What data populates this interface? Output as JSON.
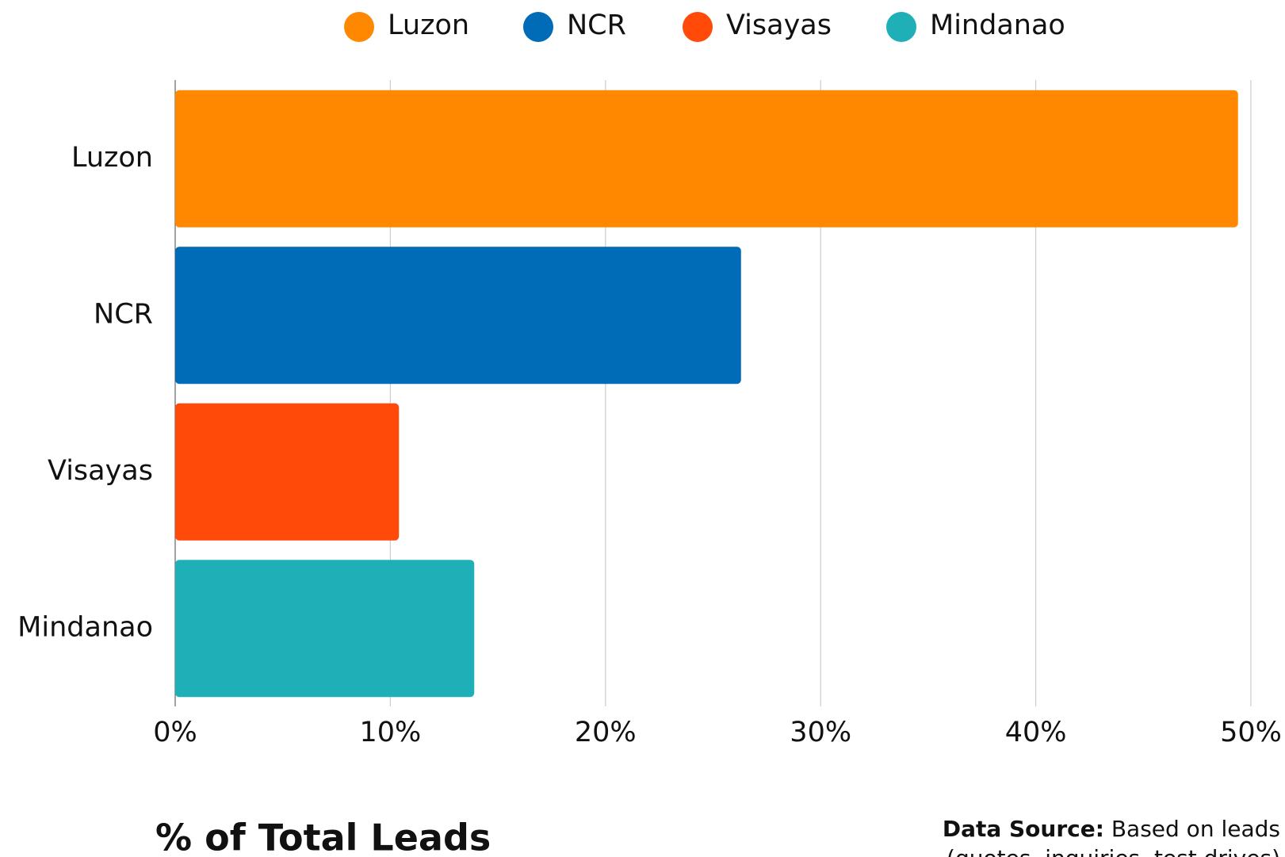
{
  "chart_data": {
    "type": "bar",
    "orientation": "horizontal",
    "title": "% of Total Leads",
    "source_label": "Data Source:",
    "source_text": "Based on leads",
    "source_text2": "(quotes, inquiries, test drives)",
    "categories": [
      "Luzon",
      "NCR",
      "Visayas",
      "Mindanao"
    ],
    "values": [
      49.4,
      26.3,
      10.4,
      13.9
    ],
    "colors": [
      "#ff8800",
      "#006bb6",
      "#ff4a0a",
      "#1eb0b6"
    ],
    "xlim": [
      0,
      50
    ],
    "xticks": [
      {
        "value": 0,
        "label": "0%"
      },
      {
        "value": 10,
        "label": "10%"
      },
      {
        "value": 20,
        "label": "20%"
      },
      {
        "value": 30,
        "label": "30%"
      },
      {
        "value": 40,
        "label": "40%"
      },
      {
        "value": 50,
        "label": "50%"
      }
    ],
    "grid": true,
    "legend": "top"
  }
}
